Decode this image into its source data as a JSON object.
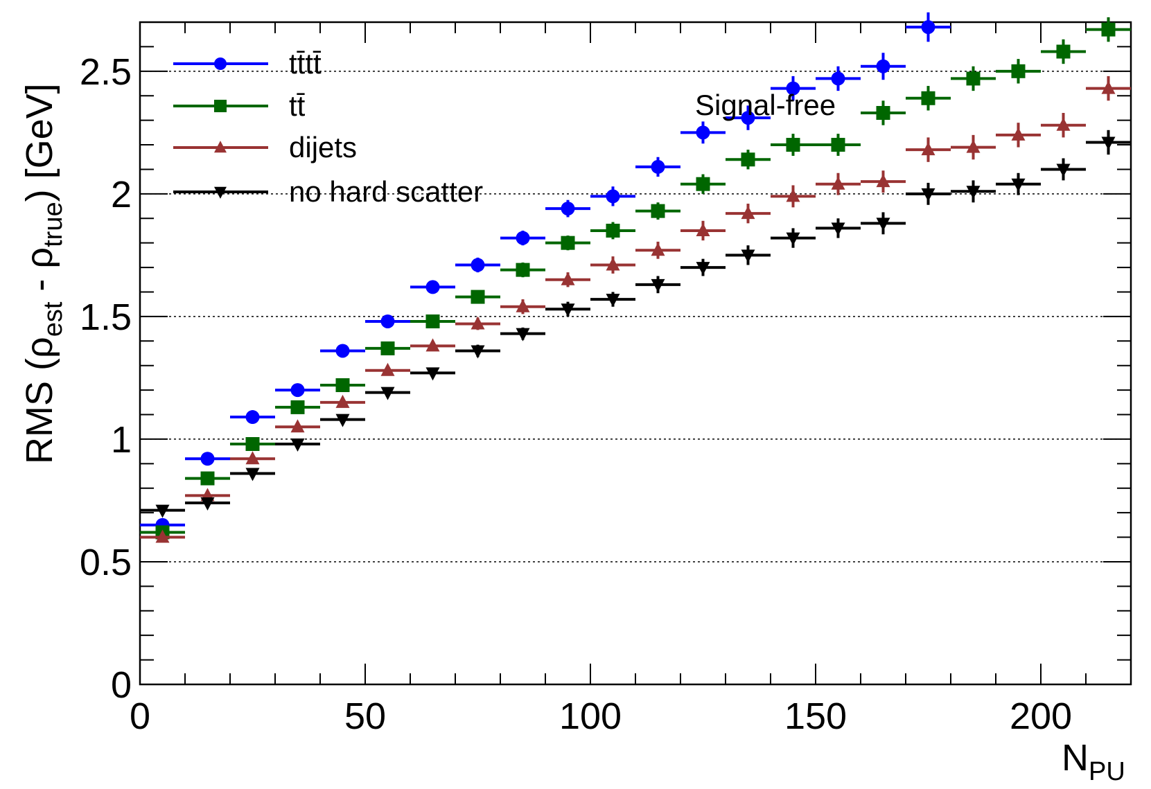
{
  "chart_data": {
    "type": "scatter",
    "title": "",
    "xlabel": "N",
    "xlabel_sub": "PU",
    "ylabel_main": "RMS (ρ",
    "ylabel_sub1": "est",
    "ylabel_mid": " - ρ",
    "ylabel_sub2": "true",
    "ylabel_end": ") [GeV]",
    "xlim": [
      0,
      220
    ],
    "ylim": [
      0,
      2.7
    ],
    "xticks": [
      0,
      50,
      100,
      150,
      200
    ],
    "yticks": [
      0,
      0.5,
      1,
      1.5,
      2,
      2.5
    ],
    "xtick_labels": [
      "0",
      "50",
      "100",
      "150",
      "200"
    ],
    "ytick_labels": [
      "0",
      "0.5",
      "1",
      "1.5",
      "2",
      "2.5"
    ],
    "grid_y": [
      0.5,
      1,
      1.5,
      2,
      2.5
    ],
    "annotation": "Signal-free",
    "legend_position": "top-left",
    "x": [
      5,
      15,
      25,
      35,
      45,
      55,
      65,
      75,
      85,
      95,
      105,
      115,
      125,
      135,
      145,
      155,
      165,
      175,
      185,
      195,
      205,
      215
    ],
    "x_halfwidth": 5,
    "series": [
      {
        "name": "tt̄tt̄",
        "color": "#0000ff",
        "marker": "circle",
        "values": [
          0.65,
          0.92,
          1.09,
          1.2,
          1.36,
          1.48,
          1.62,
          1.71,
          1.82,
          1.94,
          1.99,
          2.11,
          2.25,
          2.31,
          2.43,
          2.47,
          2.52,
          2.68,
          null,
          null,
          null,
          null
        ],
        "errors": [
          0.01,
          0.01,
          0.01,
          0.01,
          0.015,
          0.02,
          0.025,
          0.03,
          0.03,
          0.035,
          0.04,
          0.04,
          0.045,
          0.05,
          0.05,
          0.05,
          0.055,
          0.06,
          null,
          null,
          null,
          null
        ]
      },
      {
        "name": "tt̄",
        "color": "#006600",
        "marker": "square",
        "values": [
          0.62,
          0.84,
          0.98,
          1.13,
          1.22,
          1.37,
          1.48,
          1.58,
          1.69,
          1.8,
          1.85,
          1.93,
          2.04,
          2.14,
          2.2,
          2.2,
          2.33,
          2.39,
          2.47,
          2.5,
          2.58,
          2.67
        ],
        "errors": [
          0.01,
          0.01,
          0.01,
          0.01,
          0.015,
          0.02,
          0.02,
          0.025,
          0.03,
          0.03,
          0.035,
          0.035,
          0.04,
          0.04,
          0.045,
          0.045,
          0.05,
          0.05,
          0.05,
          0.05,
          0.05,
          0.05
        ]
      },
      {
        "name": "dijets",
        "color": "#993333",
        "marker": "triangle-up",
        "values": [
          0.6,
          0.77,
          0.92,
          1.05,
          1.15,
          1.28,
          1.38,
          1.47,
          1.54,
          1.65,
          1.71,
          1.77,
          1.85,
          1.92,
          1.99,
          2.04,
          2.05,
          2.18,
          2.19,
          2.24,
          2.28,
          2.43
        ],
        "errors": [
          0.01,
          0.01,
          0.01,
          0.01,
          0.015,
          0.02,
          0.02,
          0.025,
          0.03,
          0.03,
          0.035,
          0.035,
          0.04,
          0.04,
          0.045,
          0.045,
          0.045,
          0.05,
          0.05,
          0.05,
          0.05,
          0.05
        ]
      },
      {
        "name": "no hard scatter",
        "color": "#000000",
        "marker": "triangle-down",
        "values": [
          0.71,
          0.74,
          0.86,
          0.98,
          1.08,
          1.19,
          1.27,
          1.36,
          1.43,
          1.53,
          1.57,
          1.63,
          1.7,
          1.75,
          1.82,
          1.86,
          1.88,
          2.0,
          2.01,
          2.04,
          2.1,
          2.21
        ],
        "errors": [
          0.01,
          0.01,
          0.01,
          0.01,
          0.015,
          0.015,
          0.02,
          0.025,
          0.025,
          0.03,
          0.03,
          0.035,
          0.035,
          0.04,
          0.04,
          0.04,
          0.045,
          0.045,
          0.045,
          0.045,
          0.045,
          0.05
        ]
      }
    ]
  }
}
